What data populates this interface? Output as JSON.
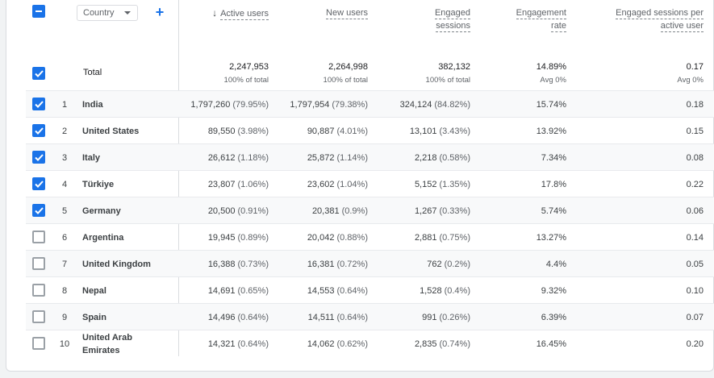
{
  "header": {
    "dimension_label": "Country",
    "add_label": "+",
    "columns": [
      {
        "label": "Active users",
        "sorted": true
      },
      {
        "label": "New users"
      },
      {
        "label_line1": "Engaged",
        "label_line2": "sessions"
      },
      {
        "label_line1": "Engagement",
        "label_line2": "rate"
      },
      {
        "label_line1": "Engaged sessions per",
        "label_line2": "active user"
      }
    ]
  },
  "total": {
    "label": "Total",
    "values": [
      {
        "value": "2,247,953",
        "sub": "100% of total"
      },
      {
        "value": "2,264,998",
        "sub": "100% of total"
      },
      {
        "value": "382,132",
        "sub": "100% of total"
      },
      {
        "value": "14.89%",
        "sub": "Avg 0%"
      },
      {
        "value": "0.17",
        "sub": "Avg 0%"
      }
    ]
  },
  "rows": [
    {
      "rank": "1",
      "country": "India",
      "checked": true,
      "active": "1,797,260",
      "active_pct": "(79.95%)",
      "new": "1,797,954",
      "new_pct": "(79.38%)",
      "engaged": "324,124",
      "engaged_pct": "(84.82%)",
      "rate": "15.74%",
      "per_user": "0.18"
    },
    {
      "rank": "2",
      "country": "United States",
      "checked": true,
      "active": "89,550",
      "active_pct": "(3.98%)",
      "new": "90,887",
      "new_pct": "(4.01%)",
      "engaged": "13,101",
      "engaged_pct": "(3.43%)",
      "rate": "13.92%",
      "per_user": "0.15"
    },
    {
      "rank": "3",
      "country": "Italy",
      "checked": true,
      "active": "26,612",
      "active_pct": "(1.18%)",
      "new": "25,872",
      "new_pct": "(1.14%)",
      "engaged": "2,218",
      "engaged_pct": "(0.58%)",
      "rate": "7.34%",
      "per_user": "0.08"
    },
    {
      "rank": "4",
      "country": "Türkiye",
      "checked": true,
      "active": "23,807",
      "active_pct": "(1.06%)",
      "new": "23,602",
      "new_pct": "(1.04%)",
      "engaged": "5,152",
      "engaged_pct": "(1.35%)",
      "rate": "17.8%",
      "per_user": "0.22"
    },
    {
      "rank": "5",
      "country": "Germany",
      "checked": true,
      "active": "20,500",
      "active_pct": "(0.91%)",
      "new": "20,381",
      "new_pct": "(0.9%)",
      "engaged": "1,267",
      "engaged_pct": "(0.33%)",
      "rate": "5.74%",
      "per_user": "0.06"
    },
    {
      "rank": "6",
      "country": "Argentina",
      "checked": false,
      "active": "19,945",
      "active_pct": "(0.89%)",
      "new": "20,042",
      "new_pct": "(0.88%)",
      "engaged": "2,881",
      "engaged_pct": "(0.75%)",
      "rate": "13.27%",
      "per_user": "0.14"
    },
    {
      "rank": "7",
      "country": "United Kingdom",
      "checked": false,
      "active": "16,388",
      "active_pct": "(0.73%)",
      "new": "16,381",
      "new_pct": "(0.72%)",
      "engaged": "762",
      "engaged_pct": "(0.2%)",
      "rate": "4.4%",
      "per_user": "0.05"
    },
    {
      "rank": "8",
      "country": "Nepal",
      "checked": false,
      "active": "14,691",
      "active_pct": "(0.65%)",
      "new": "14,553",
      "new_pct": "(0.64%)",
      "engaged": "1,528",
      "engaged_pct": "(0.4%)",
      "rate": "9.32%",
      "per_user": "0.10"
    },
    {
      "rank": "9",
      "country": "Spain",
      "checked": false,
      "active": "14,496",
      "active_pct": "(0.64%)",
      "new": "14,511",
      "new_pct": "(0.64%)",
      "engaged": "991",
      "engaged_pct": "(0.26%)",
      "rate": "6.39%",
      "per_user": "0.07"
    },
    {
      "rank": "10",
      "country": "United Arab Emirates",
      "checked": false,
      "active": "14,321",
      "active_pct": "(0.64%)",
      "new": "14,062",
      "new_pct": "(0.62%)",
      "engaged": "2,835",
      "engaged_pct": "(0.74%)",
      "rate": "16.45%",
      "per_user": "0.20"
    }
  ],
  "colors": {
    "accent": "#1a73e8",
    "border": "#dadce0",
    "shaded_row": "#f8f9fa"
  }
}
